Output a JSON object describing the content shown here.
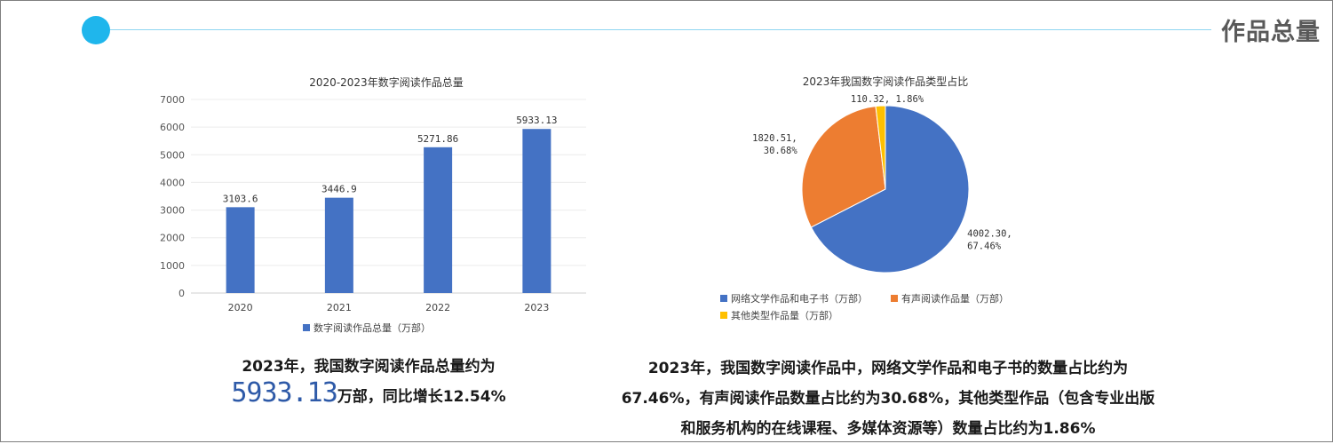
{
  "header": {
    "title": "作品总量"
  },
  "colors": {
    "accent": "#1fb6ec",
    "bar": "#4472c4",
    "pie": [
      "#4472c4",
      "#ed7d31",
      "#ffc000"
    ],
    "highlight": "#2e5aa8"
  },
  "chart_data": [
    {
      "type": "bar",
      "title": "2020-2023年数字阅读作品总量",
      "categories": [
        "2020",
        "2021",
        "2022",
        "2023"
      ],
      "series": [
        {
          "name": "数字阅读作品总量（万部）",
          "values": [
            3103.6,
            3446.9,
            5271.86,
            5933.13
          ]
        }
      ],
      "data_labels": [
        "3103.6",
        "3446.9",
        "5271.86",
        "5933.13"
      ],
      "yticks": [
        "0",
        "1000",
        "2000",
        "3000",
        "4000",
        "5000",
        "6000",
        "7000"
      ],
      "ylim": [
        0,
        7000
      ],
      "grid": true,
      "legend": "bottom"
    },
    {
      "type": "pie",
      "title": "2023年我国数字阅读作品类型占比",
      "slices": [
        {
          "name": "网络文学作品和电子书（万部）",
          "value": 4002.3,
          "percent": 67.46,
          "label_lines": [
            "4002.30,",
            "67.46%"
          ]
        },
        {
          "name": "有声阅读作品量（万部）",
          "value": 1820.51,
          "percent": 30.68,
          "label_lines": [
            "1820.51,",
            "30.68%"
          ]
        },
        {
          "name": "其他类型作品量（万部）",
          "value": 110.32,
          "percent": 1.86,
          "label_lines": [
            "110.32, 1.86%"
          ]
        }
      ],
      "legend": "bottom"
    }
  ],
  "summary_left": {
    "line1": "2023年，我国数字阅读作品总量约为",
    "big_number": "5933.13",
    "line2_rest": "万部，同比增长12.54%"
  },
  "summary_right": {
    "line1": "2023年，我国数字阅读作品中，网络文学作品和电子书的数量占比约为",
    "line2": "67.46%，有声阅读作品数量占比约为30.68%，其他类型作品（包含专业出版",
    "line3": "和服务机构的在线课程、多媒体资源等）数量占比约为1.86%"
  }
}
